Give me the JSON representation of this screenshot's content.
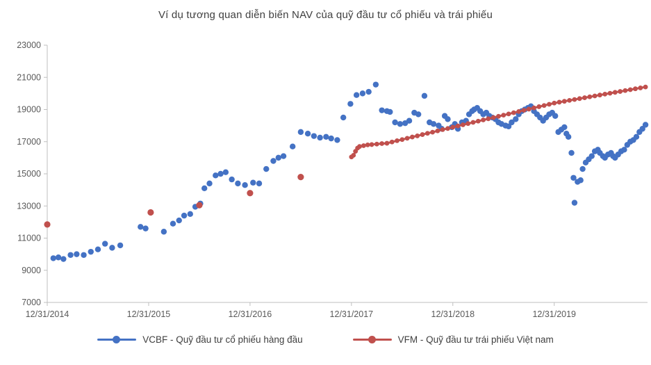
{
  "chart_data": {
    "type": "scatter",
    "title": "Ví dụ tương quan diễn biến NAV của quỹ đầu tư cổ phiếu và trái phiếu",
    "xlabel": "",
    "ylabel": "",
    "ylim": [
      7000,
      23000
    ],
    "y_ticks": [
      7000,
      9000,
      11000,
      13000,
      15000,
      17000,
      19000,
      21000,
      23000
    ],
    "x_range": [
      0,
      5.92
    ],
    "x_unit": "years since 12/31/2014",
    "x_tick_labels": [
      "12/31/2014",
      "12/31/2015",
      "12/31/2016",
      "12/31/2017",
      "12/31/2018",
      "12/31/2019"
    ],
    "grid": false,
    "legend_position": "bottom",
    "axis_color": "#bfbfbf",
    "tick_color": "#595959",
    "title_color": "#404040",
    "series": [
      {
        "name": "VCBF - Quỹ đầu tư cổ phiếu hàng đầu",
        "color": "#4472c4",
        "style": "markers",
        "points": [
          [
            0.06,
            9750
          ],
          [
            0.11,
            9800
          ],
          [
            0.16,
            9700
          ],
          [
            0.23,
            9950
          ],
          [
            0.29,
            10000
          ],
          [
            0.36,
            9950
          ],
          [
            0.43,
            10150
          ],
          [
            0.5,
            10300
          ],
          [
            0.57,
            10650
          ],
          [
            0.64,
            10400
          ],
          [
            0.72,
            10550
          ],
          [
            0.92,
            11700
          ],
          [
            0.97,
            11600
          ],
          [
            1.15,
            11400
          ],
          [
            1.24,
            11900
          ],
          [
            1.3,
            12100
          ],
          [
            1.35,
            12400
          ],
          [
            1.41,
            12500
          ],
          [
            1.46,
            12950
          ],
          [
            1.51,
            13150
          ],
          [
            1.55,
            14100
          ],
          [
            1.6,
            14400
          ],
          [
            1.66,
            14900
          ],
          [
            1.71,
            15000
          ],
          [
            1.76,
            15100
          ],
          [
            1.82,
            14650
          ],
          [
            1.88,
            14400
          ],
          [
            1.95,
            14300
          ],
          [
            2.03,
            14450
          ],
          [
            2.09,
            14400
          ],
          [
            2.16,
            15300
          ],
          [
            2.23,
            15800
          ],
          [
            2.28,
            16000
          ],
          [
            2.33,
            16100
          ],
          [
            2.42,
            16700
          ],
          [
            2.5,
            17600
          ],
          [
            2.57,
            17500
          ],
          [
            2.63,
            17350
          ],
          [
            2.69,
            17250
          ],
          [
            2.75,
            17300
          ],
          [
            2.8,
            17200
          ],
          [
            2.86,
            17100
          ],
          [
            2.92,
            18500
          ],
          [
            2.99,
            19350
          ],
          [
            3.05,
            19900
          ],
          [
            3.11,
            20000
          ],
          [
            3.17,
            20100
          ],
          [
            3.24,
            20550
          ],
          [
            3.3,
            18950
          ],
          [
            3.35,
            18900
          ],
          [
            3.38,
            18850
          ],
          [
            3.43,
            18200
          ],
          [
            3.48,
            18100
          ],
          [
            3.53,
            18150
          ],
          [
            3.57,
            18300
          ],
          [
            3.62,
            18800
          ],
          [
            3.66,
            18700
          ],
          [
            3.72,
            19850
          ],
          [
            3.77,
            18200
          ],
          [
            3.81,
            18100
          ],
          [
            3.86,
            18000
          ],
          [
            3.89,
            17800
          ],
          [
            3.92,
            18600
          ],
          [
            3.95,
            18400
          ],
          [
            3.99,
            17900
          ],
          [
            4.02,
            18100
          ],
          [
            4.05,
            17800
          ],
          [
            4.09,
            18200
          ],
          [
            4.13,
            18300
          ],
          [
            4.16,
            18700
          ],
          [
            4.19,
            18900
          ],
          [
            4.21,
            19000
          ],
          [
            4.24,
            19100
          ],
          [
            4.27,
            18900
          ],
          [
            4.3,
            18700
          ],
          [
            4.33,
            18800
          ],
          [
            4.36,
            18600
          ],
          [
            4.39,
            18500
          ],
          [
            4.42,
            18400
          ],
          [
            4.45,
            18200
          ],
          [
            4.48,
            18100
          ],
          [
            4.52,
            18000
          ],
          [
            4.55,
            17950
          ],
          [
            4.58,
            18200
          ],
          [
            4.62,
            18400
          ],
          [
            4.65,
            18700
          ],
          [
            4.68,
            18900
          ],
          [
            4.71,
            19000
          ],
          [
            4.74,
            19100
          ],
          [
            4.77,
            19200
          ],
          [
            4.8,
            18900
          ],
          [
            4.83,
            18700
          ],
          [
            4.86,
            18500
          ],
          [
            4.89,
            18300
          ],
          [
            4.92,
            18500
          ],
          [
            4.95,
            18700
          ],
          [
            4.98,
            18800
          ],
          [
            5.01,
            18600
          ],
          [
            5.04,
            17600
          ],
          [
            5.07,
            17750
          ],
          [
            5.1,
            17900
          ],
          [
            5.12,
            17500
          ],
          [
            5.14,
            17300
          ],
          [
            5.17,
            16300
          ],
          [
            5.19,
            14750
          ],
          [
            5.2,
            13200
          ],
          [
            5.23,
            14500
          ],
          [
            5.26,
            14600
          ],
          [
            5.28,
            15300
          ],
          [
            5.31,
            15700
          ],
          [
            5.34,
            15900
          ],
          [
            5.37,
            16100
          ],
          [
            5.4,
            16400
          ],
          [
            5.43,
            16500
          ],
          [
            5.45,
            16300
          ],
          [
            5.48,
            16100
          ],
          [
            5.5,
            16000
          ],
          [
            5.53,
            16200
          ],
          [
            5.56,
            16300
          ],
          [
            5.58,
            16100
          ],
          [
            5.6,
            16000
          ],
          [
            5.63,
            16200
          ],
          [
            5.66,
            16400
          ],
          [
            5.69,
            16500
          ],
          [
            5.72,
            16800
          ],
          [
            5.75,
            17000
          ],
          [
            5.78,
            17100
          ],
          [
            5.81,
            17300
          ],
          [
            5.84,
            17600
          ],
          [
            5.87,
            17800
          ],
          [
            5.9,
            18050
          ]
        ]
      },
      {
        "name": "VFM - Quỹ đầu tư trái phiếu Việt nam",
        "color": "#c0504d",
        "style": "line+markers",
        "points_sparse": [
          [
            0.0,
            11850
          ],
          [
            1.02,
            12600
          ],
          [
            1.5,
            13050
          ],
          [
            2.0,
            13800
          ],
          [
            2.5,
            14800
          ]
        ],
        "points_line": [
          [
            3.0,
            16050
          ],
          [
            3.02,
            16150
          ],
          [
            3.04,
            16400
          ],
          [
            3.06,
            16600
          ],
          [
            3.08,
            16700
          ],
          [
            3.12,
            16750
          ],
          [
            3.16,
            16800
          ],
          [
            3.2,
            16820
          ],
          [
            3.25,
            16850
          ],
          [
            3.3,
            16880
          ],
          [
            3.35,
            16900
          ],
          [
            3.4,
            16980
          ],
          [
            3.45,
            17060
          ],
          [
            3.5,
            17130
          ],
          [
            3.55,
            17210
          ],
          [
            3.6,
            17290
          ],
          [
            3.65,
            17360
          ],
          [
            3.7,
            17440
          ],
          [
            3.75,
            17520
          ],
          [
            3.8,
            17590
          ],
          [
            3.85,
            17670
          ],
          [
            3.9,
            17750
          ],
          [
            3.95,
            17820
          ],
          [
            4.0,
            17900
          ],
          [
            4.05,
            17975
          ],
          [
            4.1,
            18050
          ],
          [
            4.15,
            18125
          ],
          [
            4.2,
            18200
          ],
          [
            4.25,
            18275
          ],
          [
            4.3,
            18350
          ],
          [
            4.35,
            18425
          ],
          [
            4.4,
            18500
          ],
          [
            4.45,
            18575
          ],
          [
            4.5,
            18650
          ],
          [
            4.55,
            18725
          ],
          [
            4.6,
            18800
          ],
          [
            4.65,
            18875
          ],
          [
            4.7,
            18950
          ],
          [
            4.75,
            19025
          ],
          [
            4.8,
            19100
          ],
          [
            4.85,
            19175
          ],
          [
            4.9,
            19250
          ],
          [
            4.95,
            19325
          ],
          [
            5.0,
            19400
          ],
          [
            5.05,
            19456
          ],
          [
            5.1,
            19511
          ],
          [
            5.15,
            19567
          ],
          [
            5.2,
            19622
          ],
          [
            5.25,
            19678
          ],
          [
            5.3,
            19733
          ],
          [
            5.35,
            19789
          ],
          [
            5.4,
            19844
          ],
          [
            5.45,
            19900
          ],
          [
            5.5,
            19956
          ],
          [
            5.55,
            20011
          ],
          [
            5.6,
            20067
          ],
          [
            5.65,
            20122
          ],
          [
            5.7,
            20178
          ],
          [
            5.75,
            20233
          ],
          [
            5.8,
            20289
          ],
          [
            5.85,
            20344
          ],
          [
            5.9,
            20400
          ]
        ]
      }
    ]
  }
}
